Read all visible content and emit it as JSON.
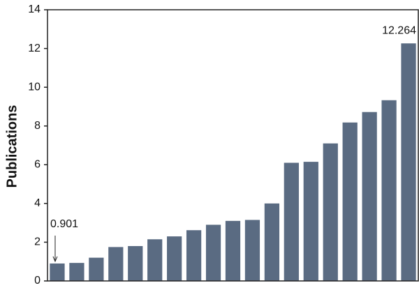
{
  "chart_data": {
    "type": "bar",
    "y_label": "Publications",
    "categories": [
      null,
      null,
      null,
      null,
      null,
      null,
      null,
      null,
      null,
      null,
      null,
      null,
      null,
      null,
      null,
      null,
      null,
      null,
      null
    ],
    "values": [
      0.901,
      0.93,
      1.2,
      1.75,
      1.8,
      2.15,
      2.3,
      2.62,
      2.9,
      3.1,
      3.15,
      4.0,
      6.1,
      6.15,
      7.1,
      8.18,
      8.72,
      9.33,
      12.264
    ],
    "value_labels": [
      "0.901",
      null,
      null,
      null,
      null,
      null,
      null,
      null,
      null,
      null,
      null,
      null,
      null,
      null,
      null,
      null,
      null,
      null,
      "12.264"
    ],
    "color": "#5a6b82",
    "ylim": [
      0,
      14
    ],
    "yticks": [
      0,
      2,
      4,
      6,
      8,
      10,
      12,
      14
    ],
    "grid": false
  }
}
